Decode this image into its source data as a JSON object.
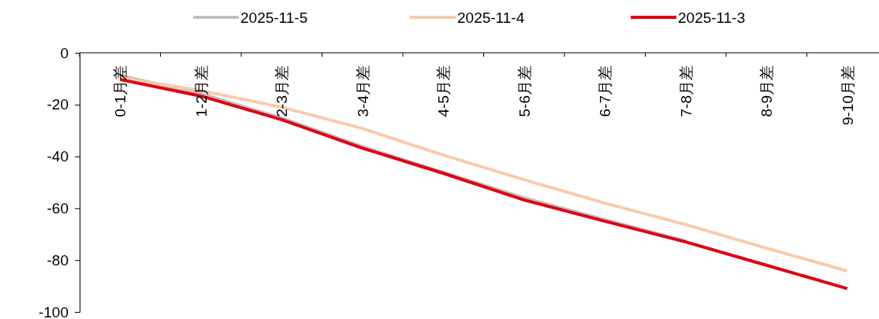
{
  "chart_data": {
    "type": "line",
    "categories": [
      "0-1月差",
      "1-2月差",
      "2-3月差",
      "3-4月差",
      "4-5月差",
      "5-6月差",
      "6-7月差",
      "7-8月差",
      "8-9月差",
      "9-10月差"
    ],
    "series": [
      {
        "name": "2025-11-5",
        "color": "#bfbfbf",
        "values": [
          -8.8,
          -15.8,
          -25.2,
          -36.2,
          -46.2,
          -56,
          -64.4,
          -72.6,
          null,
          null
        ]
      },
      {
        "name": "2025-11-4",
        "color": "#f8cbad",
        "values": [
          -9.7,
          -14.6,
          -21,
          -29.2,
          -39.5,
          -49,
          -58,
          -66.3,
          -75.4,
          -84.2
        ]
      },
      {
        "name": "2025-11-3",
        "color": "#e00012",
        "values": [
          -10.3,
          -16.7,
          -25.8,
          -36.8,
          -46.5,
          -56.8,
          -65,
          -73,
          -82,
          -91
        ]
      }
    ],
    "ylim": [
      -100,
      0
    ],
    "yticks": [
      -100,
      -80,
      -60,
      -40,
      -20,
      0
    ],
    "grid": false,
    "legend": "top",
    "marker": "none",
    "line_style": "solid"
  }
}
